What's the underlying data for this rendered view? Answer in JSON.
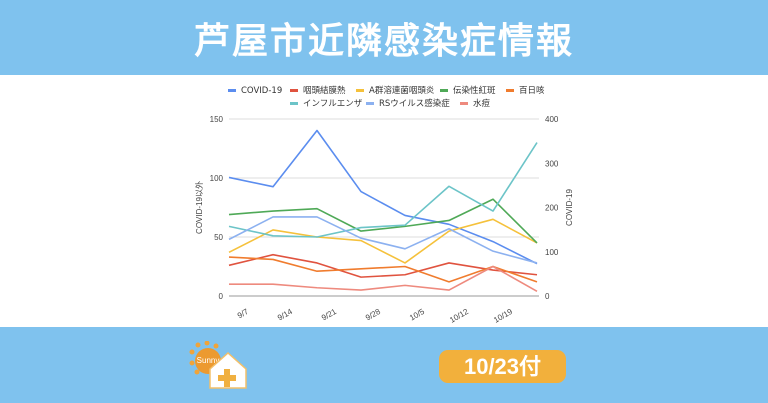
{
  "header": {
    "title": "芦屋市近隣感染症情報"
  },
  "footer": {
    "date_badge": "10/23付",
    "logo_text": "Sunny"
  },
  "chart_data": {
    "type": "line",
    "categories": [
      "9/7",
      "9/14",
      "9/21",
      "9/28",
      "10/5",
      "10/12",
      "10/19",
      ""
    ],
    "x_tick_labels": [
      "9/7",
      "9/14",
      "9/21",
      "9/28",
      "10/5",
      "10/12",
      "10/19"
    ],
    "ylabel_left": "COVID-19以外",
    "ylabel_right": "COVID-19",
    "ylim_left": [
      0,
      150
    ],
    "ylim_right": [
      0,
      400
    ],
    "yticks_left": [
      "0",
      "50",
      "100",
      "150"
    ],
    "yticks_right": [
      "0",
      "100",
      "200",
      "300",
      "400"
    ],
    "grid": true,
    "legend_placement": "top",
    "series": [
      {
        "name": "COVID-19",
        "axis": "right",
        "color": "#5b8def",
        "values": [
          268,
          247,
          374,
          236,
          182,
          162,
          123,
          73
        ]
      },
      {
        "name": "咽頭結膜熱",
        "axis": "left",
        "color": "#e0533f",
        "values": [
          26,
          35,
          28,
          16,
          18,
          28,
          22,
          18
        ]
      },
      {
        "name": "A群溶連菌咽頭炎",
        "axis": "left",
        "color": "#f5c13b",
        "values": [
          37,
          56,
          50,
          47,
          28,
          55,
          65,
          45
        ]
      },
      {
        "name": "伝染性紅斑",
        "axis": "left",
        "color": "#4fa957",
        "values": [
          69,
          72,
          74,
          55,
          59,
          64,
          82,
          45
        ]
      },
      {
        "name": "百日咳",
        "axis": "left",
        "color": "#f07c2e",
        "values": [
          33,
          31,
          21,
          23,
          25,
          12,
          25,
          12
        ]
      },
      {
        "name": "インフルエンザ",
        "axis": "left",
        "color": "#6cc4c8",
        "values": [
          59,
          51,
          50,
          58,
          60,
          93,
          72,
          130
        ]
      },
      {
        "name": "RSウイルス感染症",
        "axis": "left",
        "color": "#8cb1f0",
        "values": [
          48,
          67,
          67,
          49,
          40,
          57,
          38,
          28
        ]
      },
      {
        "name": "水痘",
        "axis": "left",
        "color": "#ee8a7e",
        "values": [
          10,
          10,
          7,
          5,
          9,
          5,
          25,
          4
        ]
      }
    ]
  }
}
